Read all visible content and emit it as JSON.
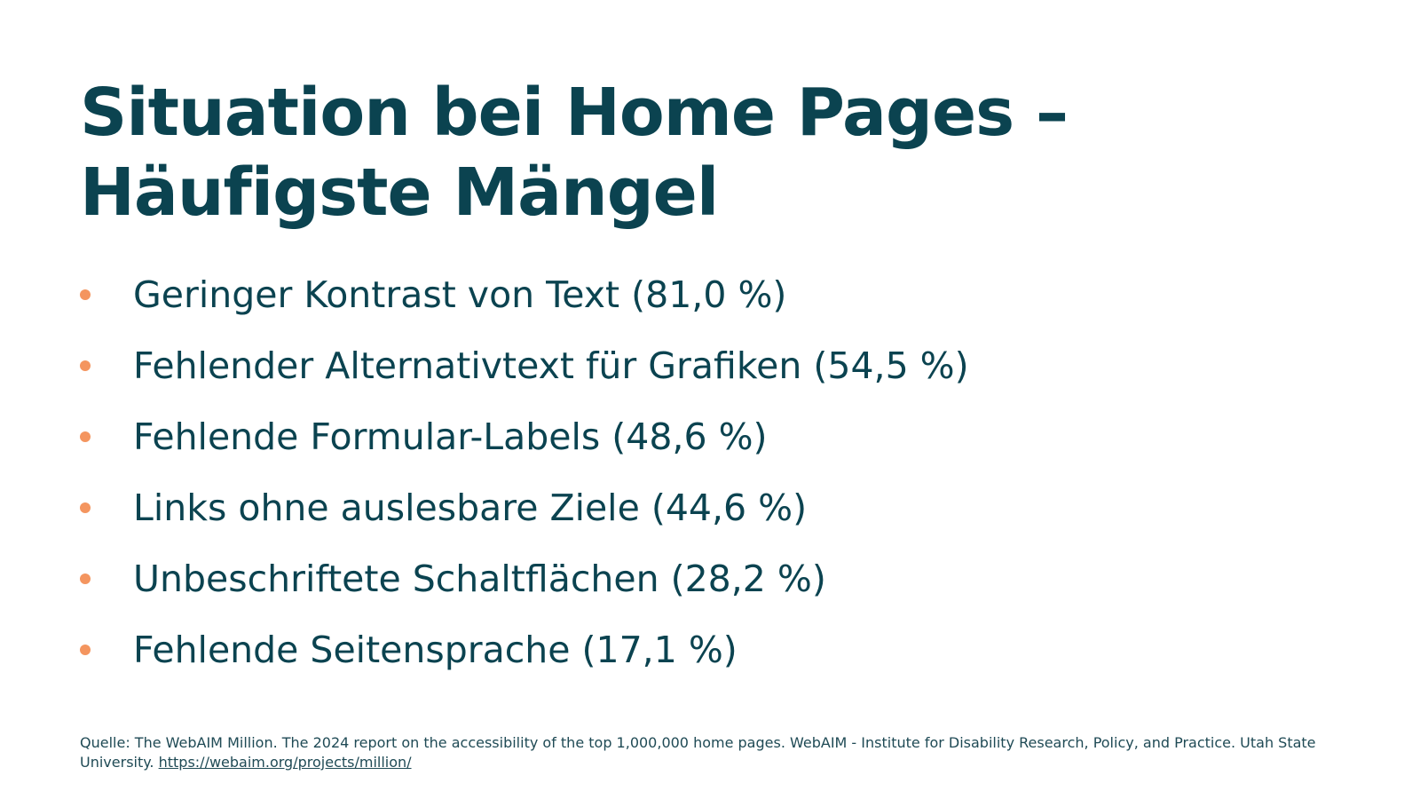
{
  "slide": {
    "title_line_1": "Situation bei Home Pages –",
    "title_line_2": "Häufigste Mängel",
    "bullets": [
      "Geringer Kontrast von Text (81,0 %)",
      "Fehlender Alternativtext für Grafiken (54,5 %)",
      "Fehlende Formular-Labels (48,6 %)",
      "Links ohne auslesbare Ziele (44,6 %)",
      "Unbeschriftete Schaltflächen (28,2 %)",
      "Fehlende Seitensprache (17,1 %)"
    ],
    "source_text": "Quelle: The WebAIM Million. The 2024 report on the accessibility of the top 1,000,000 home pages. WebAIM - Institute for Disability Research, Policy, and Practice. Utah State University.",
    "source_link": "https://webaim.org/projects/million/"
  },
  "colors": {
    "title": "#0b4350",
    "text": "#0b4350",
    "bullet": "#f4955f",
    "background": "#ffffff"
  }
}
